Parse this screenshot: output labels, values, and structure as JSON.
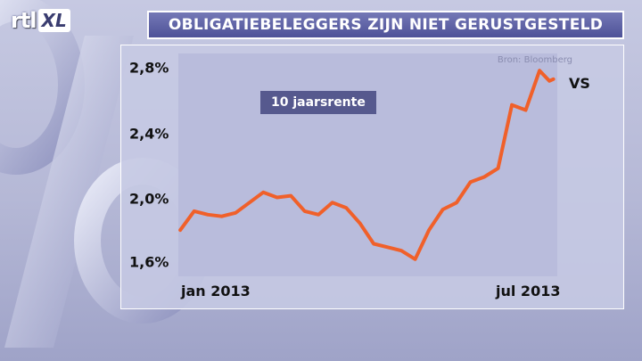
{
  "logo": {
    "brand": "rtl",
    "channel": "XL"
  },
  "title": "OBLIGATIEBELEGGERS ZIJN NIET GERUSTGESTELD",
  "source": "Bron: Bloomberg",
  "colors": {
    "line": "#f0602a",
    "panel": "#c6c9e4",
    "title_bar": "#5a5ea3",
    "legend_box": "#56598e"
  },
  "decor": [
    "percent-sign-graphic"
  ],
  "chart_data": {
    "type": "line",
    "title": "OBLIGATIEBELEGGERS ZIJN NIET GERUSTGESTELD",
    "legend_label": "10 jaarsrente",
    "series": [
      {
        "name": "VS",
        "x": [
          "2013-01-02",
          "2013-01-09",
          "2013-01-16",
          "2013-01-23",
          "2013-01-30",
          "2013-02-06",
          "2013-02-13",
          "2013-02-20",
          "2013-02-27",
          "2013-03-06",
          "2013-03-13",
          "2013-03-20",
          "2013-03-27",
          "2013-04-03",
          "2013-04-10",
          "2013-04-17",
          "2013-04-24",
          "2013-05-01",
          "2013-05-08",
          "2013-05-15",
          "2013-05-22",
          "2013-05-29",
          "2013-06-05",
          "2013-06-12",
          "2013-06-19",
          "2013-06-26",
          "2013-07-03",
          "2013-07-08",
          "2013-07-10"
        ],
        "values": [
          1.82,
          1.93,
          1.91,
          1.9,
          1.92,
          1.98,
          2.04,
          2.01,
          2.02,
          1.93,
          1.91,
          1.98,
          1.95,
          1.86,
          1.74,
          1.72,
          1.7,
          1.65,
          1.82,
          1.94,
          1.98,
          2.1,
          2.13,
          2.18,
          2.55,
          2.52,
          2.75,
          2.69,
          2.7
        ]
      }
    ],
    "xlabel": "",
    "ylabel": "",
    "x_ticks": [
      "jan 2013",
      "jul 2013"
    ],
    "y_ticks": [
      "2,8%",
      "2,4%",
      "2,0%",
      "1,6%"
    ],
    "y_tick_values": [
      2.8,
      2.4,
      2.0,
      1.6
    ],
    "ylim": [
      1.55,
      2.85
    ],
    "xlim": [
      "2013-01-01",
      "2013-07-12"
    ],
    "grid": false,
    "legend_position": "top-left"
  }
}
